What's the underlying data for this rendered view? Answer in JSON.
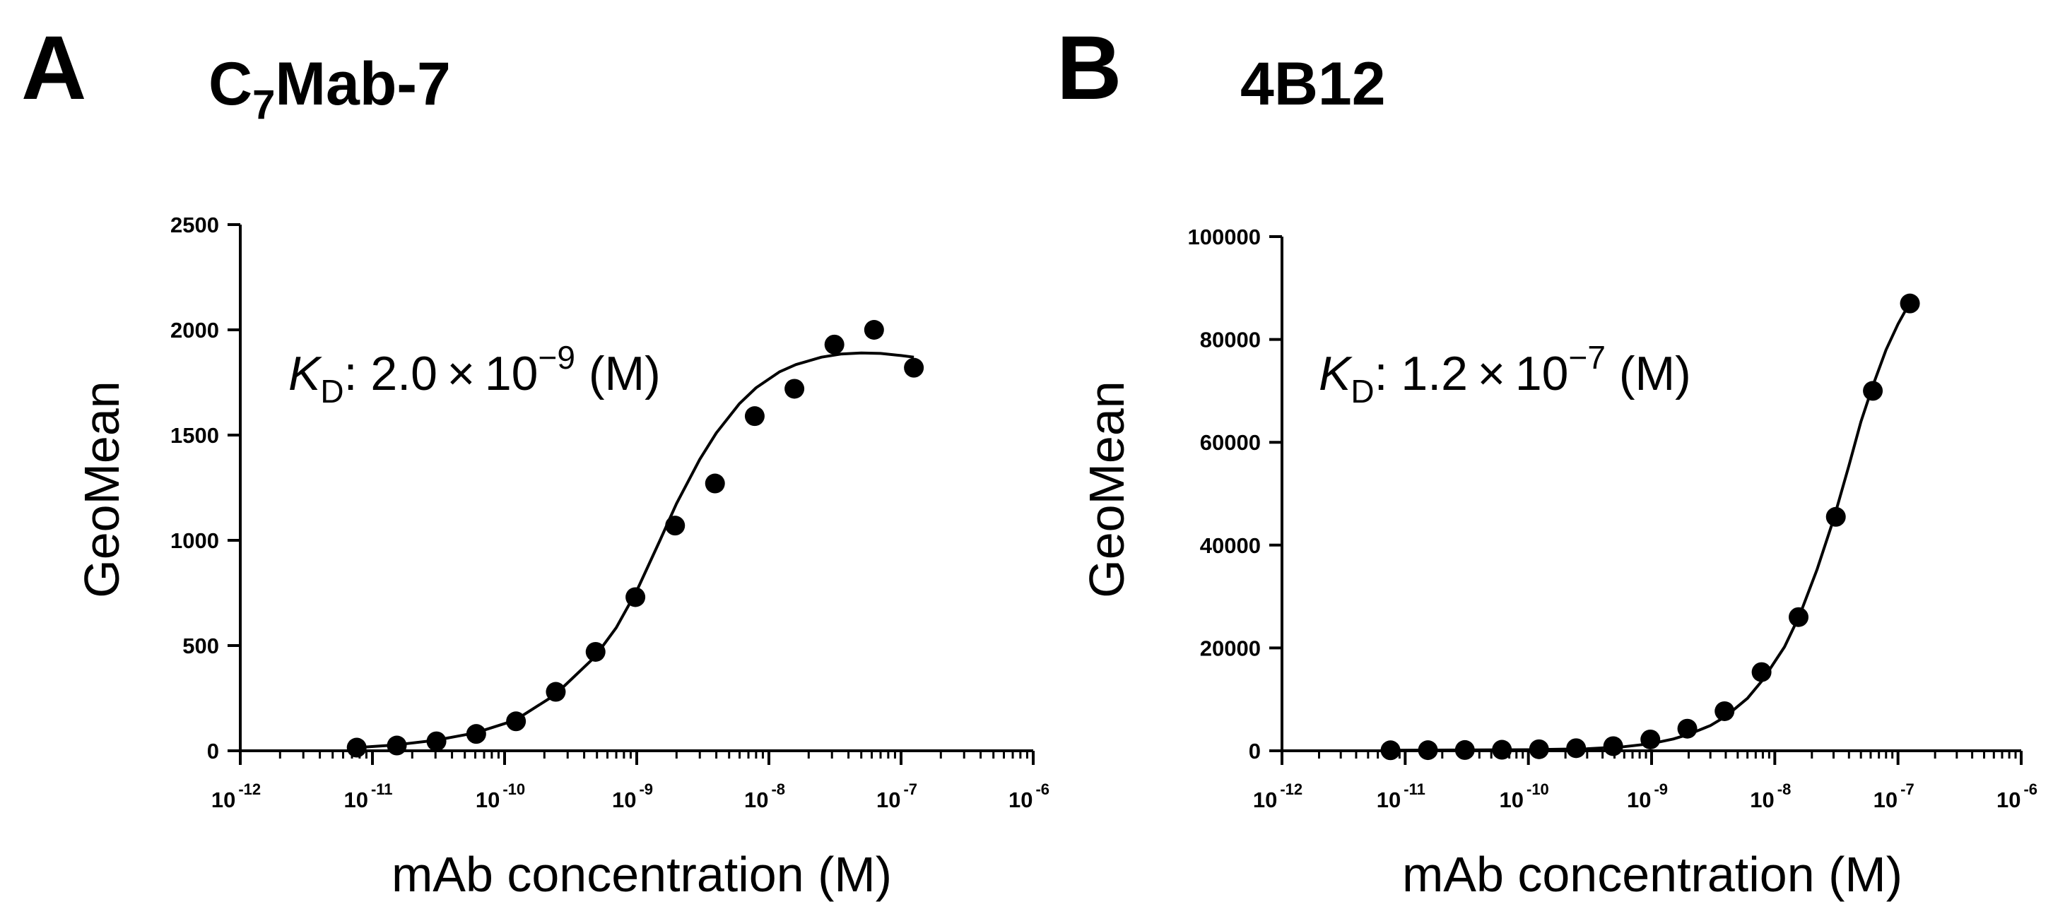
{
  "chart_data": [
    {
      "type": "scatter",
      "panel_label": "A",
      "title": "C",
      "title_sub": "7",
      "title_rest": "Mab-7",
      "kd_symbol": "K",
      "kd_subscript": "D",
      "kd_text": ": 2.0 × 10",
      "kd_exponent": "−9",
      "kd_unit": " (M)",
      "xlabel": "mAb concentration (M)",
      "ylabel": "GeoMean",
      "x_scale": "log",
      "xlim": [
        1e-12,
        1e-06
      ],
      "ylim": [
        0,
        2500
      ],
      "x_ticks": [
        {
          "base": "10",
          "exp": "-12",
          "value": 1e-12
        },
        {
          "base": "10",
          "exp": "-11",
          "value": 1e-11
        },
        {
          "base": "10",
          "exp": "-10",
          "value": 1e-10
        },
        {
          "base": "10",
          "exp": "-9",
          "value": 1e-09
        },
        {
          "base": "10",
          "exp": "-8",
          "value": 1e-08
        },
        {
          "base": "10",
          "exp": "-7",
          "value": 1e-07
        },
        {
          "base": "10",
          "exp": "-6",
          "value": 1e-06
        }
      ],
      "y_ticks": [
        "0",
        "500",
        "1000",
        "1500",
        "2000",
        "2500"
      ],
      "y_tick_values": [
        0,
        500,
        1000,
        1500,
        2000,
        2500
      ],
      "points": {
        "x": [
          7.6e-12,
          1.53e-11,
          3.05e-11,
          6.1e-11,
          1.22e-10,
          2.44e-10,
          4.88e-10,
          9.77e-10,
          1.95e-09,
          3.91e-09,
          7.81e-09,
          1.56e-08,
          3.13e-08,
          6.25e-08,
          1.25e-07
        ],
        "y": [
          15,
          25,
          45,
          80,
          140,
          280,
          470,
          730,
          1070,
          1270,
          1590,
          1720,
          1930,
          2000,
          1820
        ]
      },
      "curve": {
        "x": [
          7.6e-12,
          1.5e-11,
          3e-11,
          6e-11,
          1.2e-10,
          2.4e-10,
          4.8e-10,
          7e-10,
          1e-09,
          1.5e-09,
          2e-09,
          3e-09,
          4e-09,
          6e-09,
          8e-09,
          1.2e-08,
          1.6e-08,
          2.5e-08,
          3.5e-08,
          5e-08,
          7e-08,
          1e-07,
          1.25e-07
        ],
        "y": [
          15,
          28,
          50,
          85,
          145,
          265,
          445,
          585,
          760,
          1000,
          1175,
          1385,
          1510,
          1650,
          1725,
          1800,
          1835,
          1870,
          1885,
          1890,
          1888,
          1878,
          1870
        ]
      }
    },
    {
      "type": "scatter",
      "panel_label": "B",
      "title": "4B12",
      "kd_symbol": "K",
      "kd_subscript": "D",
      "kd_text": ": 1.2 × 10",
      "kd_exponent": "−7",
      "kd_unit": " (M)",
      "xlabel": "mAb concentration (M)",
      "ylabel": "GeoMean",
      "x_scale": "log",
      "xlim": [
        1e-12,
        1e-06
      ],
      "ylim": [
        0,
        100000
      ],
      "x_ticks": [
        {
          "base": "10",
          "exp": "-12",
          "value": 1e-12
        },
        {
          "base": "10",
          "exp": "-11",
          "value": 1e-11
        },
        {
          "base": "10",
          "exp": "-10",
          "value": 1e-10
        },
        {
          "base": "10",
          "exp": "-9",
          "value": 1e-09
        },
        {
          "base": "10",
          "exp": "-8",
          "value": 1e-08
        },
        {
          "base": "10",
          "exp": "-7",
          "value": 1e-07
        },
        {
          "base": "10",
          "exp": "-6",
          "value": 1e-06
        }
      ],
      "y_ticks": [
        "0",
        "20000",
        "40000",
        "60000",
        "80000",
        "100000"
      ],
      "y_tick_values": [
        0,
        20000,
        40000,
        60000,
        80000,
        100000
      ],
      "points": {
        "x": [
          7.6e-12,
          1.53e-11,
          3.05e-11,
          6.1e-11,
          1.22e-10,
          2.44e-10,
          4.88e-10,
          9.77e-10,
          1.95e-09,
          3.91e-09,
          7.81e-09,
          1.56e-08,
          3.13e-08,
          6.25e-08,
          1.25e-07
        ],
        "y": [
          100,
          120,
          150,
          200,
          300,
          500,
          900,
          2200,
          4300,
          7700,
          15300,
          26000,
          45500,
          70000,
          87000
        ]
      },
      "curve": {
        "x": [
          7.6e-12,
          1e-10,
          3e-10,
          6e-10,
          1e-09,
          1.5e-09,
          2e-09,
          3e-09,
          4e-09,
          6e-09,
          8e-09,
          1.2e-08,
          1.6e-08,
          2.2e-08,
          3e-08,
          4e-08,
          5e-08,
          6.25e-08,
          8e-08,
          1e-07,
          1.25e-07
        ],
        "y": [
          100,
          200,
          400,
          800,
          1400,
          2300,
          3200,
          4900,
          6700,
          10200,
          13800,
          20200,
          26500,
          35200,
          45000,
          55500,
          64000,
          71000,
          78000,
          83000,
          87200
        ]
      }
    }
  ]
}
